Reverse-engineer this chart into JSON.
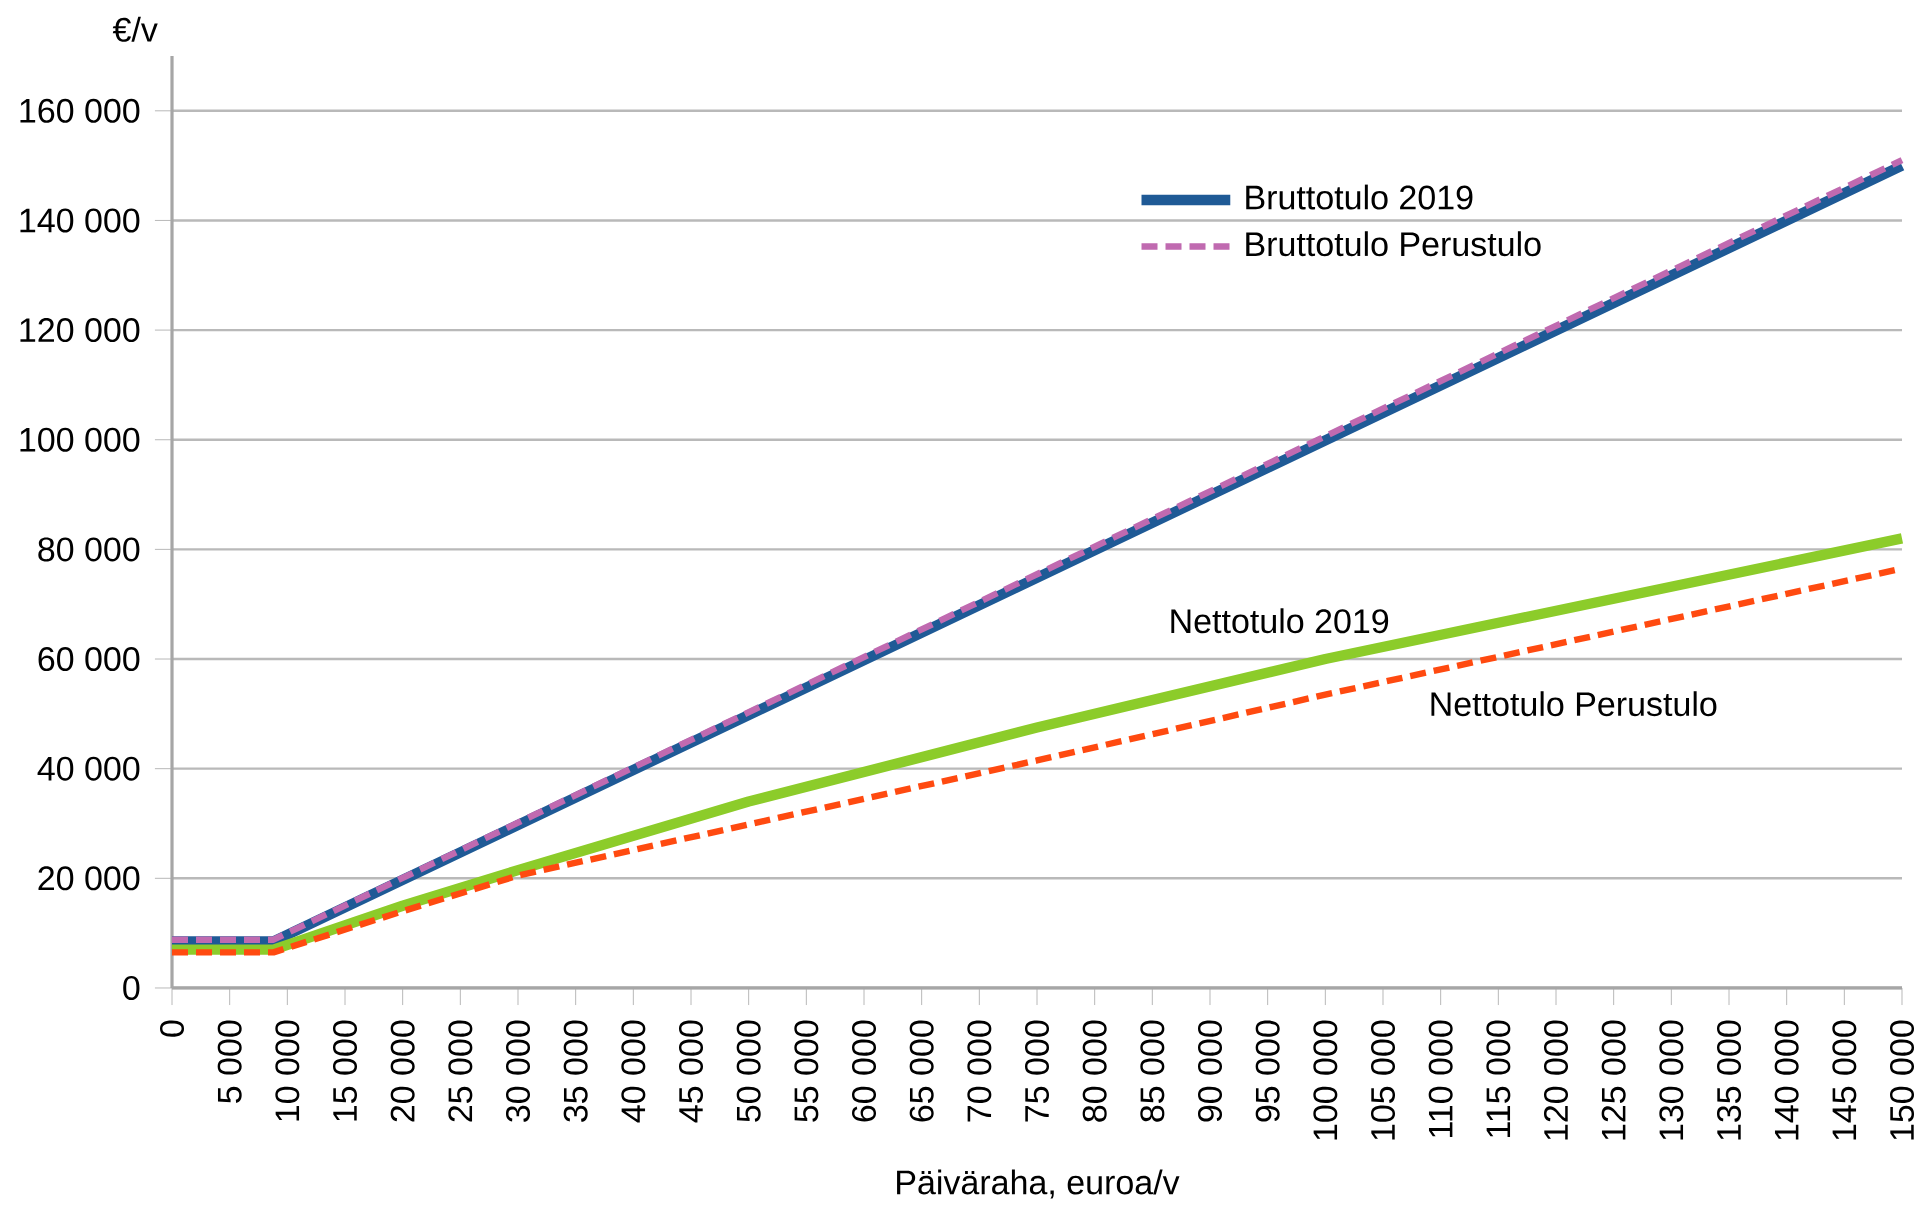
{
  "chart_data": {
    "type": "line",
    "xlabel": "Päiväraha, euroa/v",
    "ylabel": "€/v",
    "xlim": [
      0,
      150000
    ],
    "ylim": [
      0,
      170000
    ],
    "xticks": [
      0,
      {
        "value": 5000,
        "label": "5 000"
      },
      {
        "value": 10000,
        "label": "10 000"
      },
      {
        "value": 15000,
        "label": "15 000"
      },
      {
        "value": 20000,
        "label": "20 000"
      },
      {
        "value": 25000,
        "label": "25 000"
      },
      {
        "value": 30000,
        "label": "30 000"
      },
      {
        "value": 35000,
        "label": "35 000"
      },
      {
        "value": 40000,
        "label": "40 000"
      },
      {
        "value": 45000,
        "label": "45 000"
      },
      {
        "value": 50000,
        "label": "50 000"
      },
      {
        "value": 55000,
        "label": "55 000"
      },
      {
        "value": 60000,
        "label": "60 000"
      },
      {
        "value": 65000,
        "label": "65 000"
      },
      {
        "value": 70000,
        "label": "70 000"
      },
      {
        "value": 75000,
        "label": "75 000"
      },
      {
        "value": 80000,
        "label": "80 000"
      },
      {
        "value": 85000,
        "label": "85 000"
      },
      {
        "value": 90000,
        "label": "90 000"
      },
      {
        "value": 95000,
        "label": "95 000"
      },
      {
        "value": 100000,
        "label": "100 000"
      },
      {
        "value": 105000,
        "label": "105 000"
      },
      {
        "value": 110000,
        "label": "110 000"
      },
      {
        "value": 115000,
        "label": "115 000"
      },
      {
        "value": 120000,
        "label": "120 000"
      },
      {
        "value": 125000,
        "label": "125 000"
      },
      {
        "value": 130000,
        "label": "130 000"
      },
      {
        "value": 135000,
        "label": "135 000"
      },
      {
        "value": 140000,
        "label": "140 000"
      },
      {
        "value": 145000,
        "label": "145 000"
      },
      {
        "value": 150000,
        "label": "150 000"
      }
    ],
    "yticks": [
      0,
      {
        "value": 20000,
        "label": "20 000"
      },
      {
        "value": 40000,
        "label": "40 000"
      },
      {
        "value": 60000,
        "label": "60 000"
      },
      {
        "value": 80000,
        "label": "80 000"
      },
      {
        "value": 100000,
        "label": "100 000"
      },
      {
        "value": 120000,
        "label": "120 000"
      },
      {
        "value": 140000,
        "label": "140 000"
      },
      {
        "value": 160000,
        "label": "160 000"
      }
    ],
    "grid": "y",
    "legend": "top right",
    "series": [
      {
        "name": "Bruttotulo 2019",
        "color": "#1f5a96",
        "line_style": "solid",
        "x": [
          0,
          8800,
          150000
        ],
        "values": [
          8500,
          8500,
          150000
        ]
      },
      {
        "name": "Bruttotulo Perustulo",
        "color": "#c06ab0",
        "line_style": "dashed",
        "x": [
          0,
          8800,
          150000
        ],
        "values": [
          8800,
          8800,
          151000
        ]
      },
      {
        "color": "#8ccc2a",
        "line_style": "solid",
        "x": [
          0,
          8800,
          20000,
          30000,
          50000,
          75000,
          100000,
          150000
        ],
        "values": [
          7000,
          7000,
          15000,
          21500,
          34000,
          47500,
          60000,
          82000
        ]
      },
      {
        "color": "#ff4a10",
        "line_style": "dashed",
        "x": [
          0,
          8800,
          20000,
          30000,
          75000,
          100000,
          150000
        ],
        "values": [
          6500,
          6500,
          14000,
          20500,
          41500,
          53500,
          76500
        ]
      }
    ],
    "annotations": [
      "Nettotulo 2019",
      "Nettotulo Perustulo"
    ]
  }
}
